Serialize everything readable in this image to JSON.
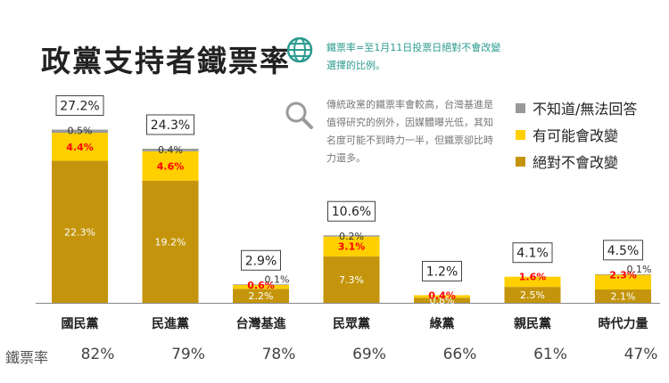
{
  "title": "政黨支持者鐵票率",
  "note": "鐵票率=至1月11日投票日絕對不會改變選擇的比例。",
  "description": "傳統政黨的鐵票率會較高，台灣基進是值得研究的例外，因媒體曝光低，其知名度可能不到時力一半，但鐵票卻比時力還多。",
  "icons": {
    "note": "globe-icon",
    "description": "search-icon"
  },
  "colors": {
    "never_change": "#c4950c",
    "may_change": "#ffcf00",
    "unknown": "#999999",
    "may_change_label": "#ff0000"
  },
  "rate_label": "鐵票率",
  "chart_data": {
    "type": "bar",
    "stacked": true,
    "categories": [
      "國民黨",
      "民進黨",
      "台灣基進",
      "民眾黨",
      "綠黨",
      "親民黨",
      "時代力量"
    ],
    "series": [
      {
        "name": "絕對不會改變",
        "values": [
          22.3,
          19.2,
          2.2,
          7.3,
          0.8,
          2.5,
          2.1
        ],
        "labels": [
          "22.3%",
          "19.2%",
          "2.2%",
          "7.3%",
          "0.8%",
          "2.5%",
          "2.1%"
        ]
      },
      {
        "name": "有可能會改變",
        "values": [
          4.4,
          4.6,
          0.6,
          3.1,
          0.4,
          1.6,
          2.3
        ],
        "labels": [
          "4.4%",
          "4.6%",
          "0.6%",
          "3.1%",
          "0.4%",
          "1.6%",
          "2.3%"
        ]
      },
      {
        "name": "不知道/無法回答",
        "values": [
          0.5,
          0.4,
          0.1,
          0.2,
          0.0,
          0.0,
          0.1
        ],
        "labels": [
          "0.5%",
          "0.4%",
          "0.1%",
          "0.2%",
          "",
          "",
          "0.1%"
        ]
      }
    ],
    "totals": [
      "27.2%",
      "24.3%",
      "2.9%",
      "10.6%",
      "1.2%",
      "4.1%",
      "4.5%"
    ],
    "iron_rates": [
      "82%",
      "79%",
      "78%",
      "69%",
      "66%",
      "61%",
      "47%"
    ],
    "ylim": [
      0,
      30
    ],
    "legend": "right"
  }
}
